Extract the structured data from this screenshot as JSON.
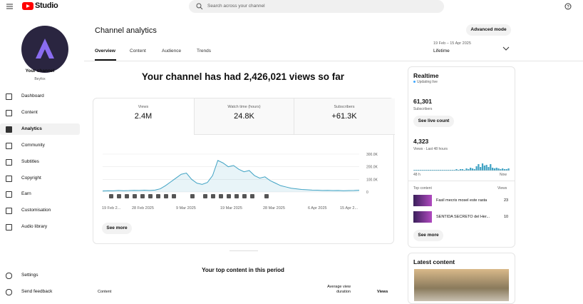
{
  "header": {
    "logo": "Studio",
    "search": "Search across your channel"
  },
  "sidebar": {
    "channel": "Your channel",
    "handle": "Beyfox",
    "nav": [
      "Dashboard",
      "Content",
      "Analytics",
      "Community",
      "Subtitles",
      "Copyright",
      "Earn",
      "Customisation",
      "Audio library"
    ],
    "bottom": [
      "Settings",
      "Send feedback"
    ]
  },
  "page": {
    "title": "Channel analytics",
    "advanced": "Advanced mode",
    "tabs": [
      "Overview",
      "Content",
      "Audience",
      "Trends"
    ],
    "date_range": "19 Feb – 15 Apr 2025",
    "period": "Lifetime",
    "headline": "Your channel has had 2,426,021 views so far"
  },
  "metrics": [
    {
      "label": "Views",
      "value": "2.4M"
    },
    {
      "label": "Watch time (hours)",
      "value": "24.8K"
    },
    {
      "label": "Subscribers",
      "value": "+61.3K"
    }
  ],
  "chart": {
    "type": "line",
    "color": "#41a3c4",
    "x_labels": [
      "19 Feb 2...",
      "28 Feb 2025",
      "9 Mar 2025",
      "19 Mar 2025",
      "28 Mar 2025",
      "6 Apr 2025",
      "15 Apr 2..."
    ],
    "values": [
      8000,
      10000,
      9000,
      12000,
      10000,
      11000,
      13000,
      12000,
      14000,
      12000,
      15000,
      25000,
      50000,
      80000,
      110000,
      140000,
      150000,
      100000,
      70000,
      60000,
      75000,
      130000,
      250000,
      230000,
      200000,
      210000,
      180000,
      160000,
      170000,
      130000,
      110000,
      120000,
      90000,
      70000,
      50000,
      40000,
      30000,
      25000,
      20000,
      18000,
      15000,
      14000,
      12000,
      13000,
      11000,
      12000,
      10000,
      11000,
      12000,
      14000
    ],
    "ylim": [
      0,
      300000
    ],
    "yticks": [
      {
        "value": 300000,
        "label": "300.0K"
      },
      {
        "value": 200000,
        "label": "200.0K"
      },
      {
        "value": 100000,
        "label": "100.0K"
      },
      0
    ]
  },
  "see_more": "See more",
  "realtime": {
    "title": "Realtime",
    "status": "Updating live",
    "subs": "61,301",
    "subs_label": "Subscribers",
    "live_button": "See live count",
    "views": "4,323",
    "views_label": "Views · Last 48 hours",
    "bars": [
      1,
      1,
      1,
      1,
      1,
      1,
      1,
      1,
      1,
      1,
      1,
      1,
      1,
      1,
      1,
      1,
      1,
      1,
      1,
      1,
      1,
      2,
      1,
      2,
      2,
      1,
      3,
      2,
      4,
      3,
      2,
      6,
      9,
      5,
      10,
      7,
      8,
      5,
      9,
      4,
      3,
      4,
      3,
      2,
      3,
      2,
      2,
      3
    ],
    "start": "48 h",
    "end": "Now",
    "top_label": "Top content",
    "views_col": "Views",
    "items": [
      {
        "title": "Fasil mecris mosel este rasta",
        "views": "23"
      },
      {
        "title": "SENTIDA SECRETO del Her...",
        "views": "10"
      }
    ],
    "see_more": "See more"
  },
  "latest": {
    "title": "Latest content"
  },
  "top_content": {
    "title": "Your top content in this period",
    "columns": [
      "Content",
      "Average view duration",
      "Views"
    ]
  }
}
